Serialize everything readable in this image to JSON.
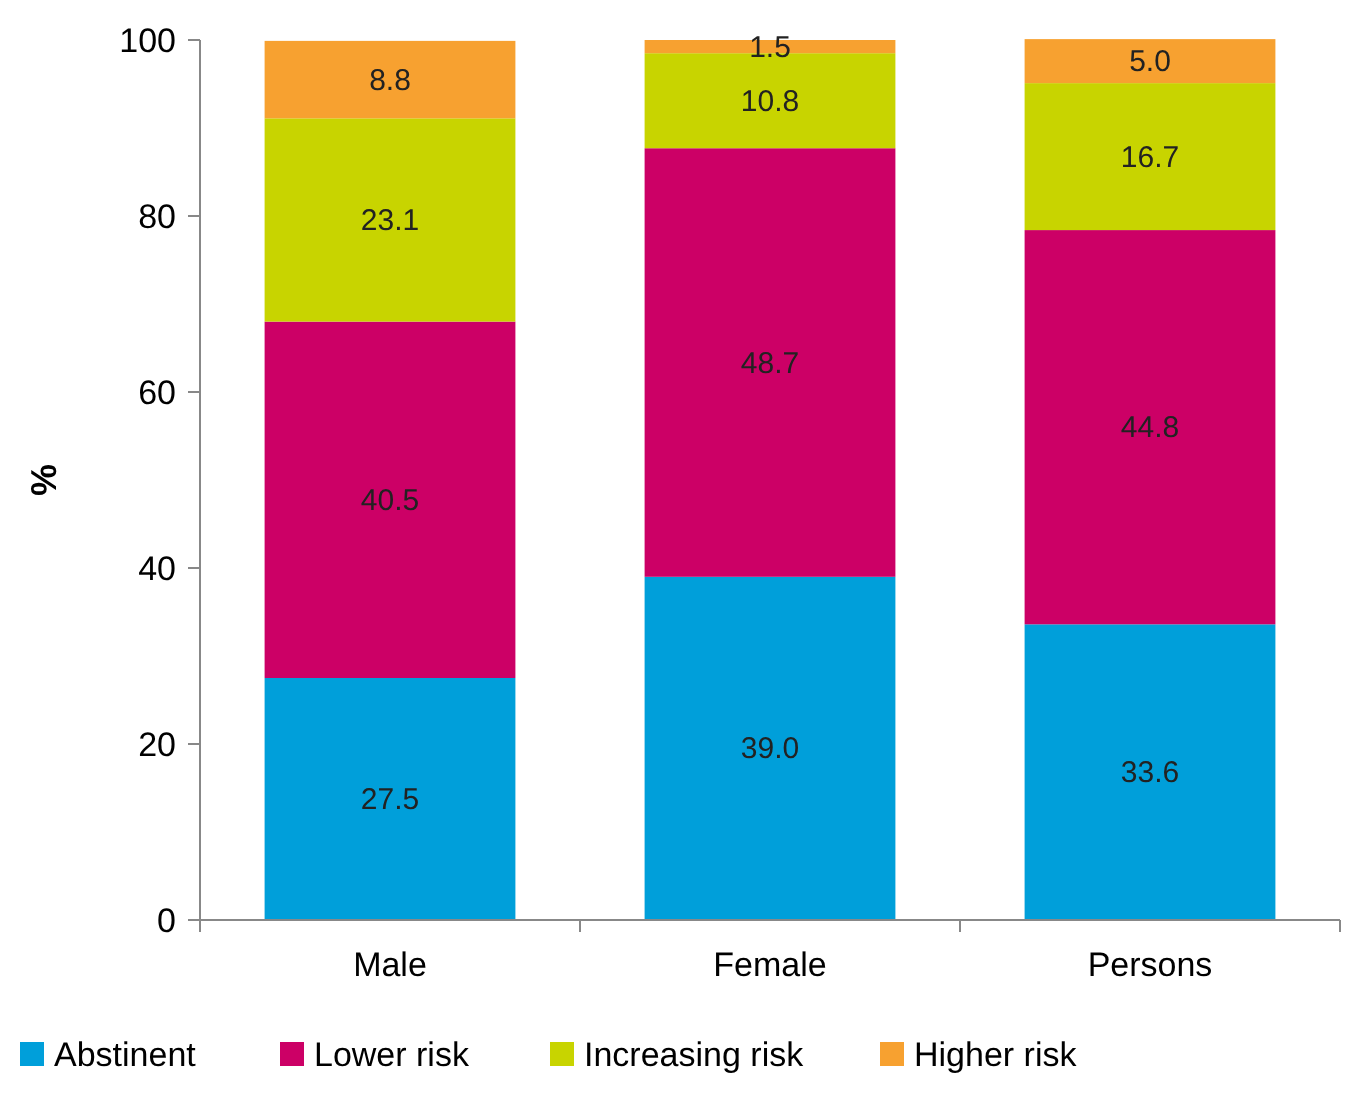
{
  "chart_data": {
    "type": "bar",
    "stacked": true,
    "ylabel": "%",
    "categories": [
      "Male",
      "Female",
      "Persons"
    ],
    "series": [
      {
        "name": "Abstinent",
        "color": "#009fda",
        "values": [
          27.5,
          39,
          33.6
        ],
        "value_labels": [
          "27.5",
          "39.0",
          "33.6"
        ]
      },
      {
        "name": "Lower risk",
        "color": "#cc0066",
        "values": [
          40.5,
          48.7,
          44.8
        ],
        "value_labels": [
          "40.5",
          "48.7",
          "44.8"
        ]
      },
      {
        "name": "Increasing risk",
        "color": "#c8d400",
        "values": [
          23.1,
          10.8,
          16.7
        ],
        "value_labels": [
          "23.1",
          "10.8",
          "16.7"
        ]
      },
      {
        "name": "Higher risk",
        "color": "#f7a130",
        "values": [
          8.8,
          1.5,
          5
        ],
        "value_labels": [
          "8.8",
          "1.5",
          "5.0"
        ]
      }
    ],
    "ylim": [
      0,
      100
    ],
    "yticks": [
      0,
      20,
      40,
      60,
      80,
      100
    ],
    "legend": "bottom",
    "grid": false
  }
}
